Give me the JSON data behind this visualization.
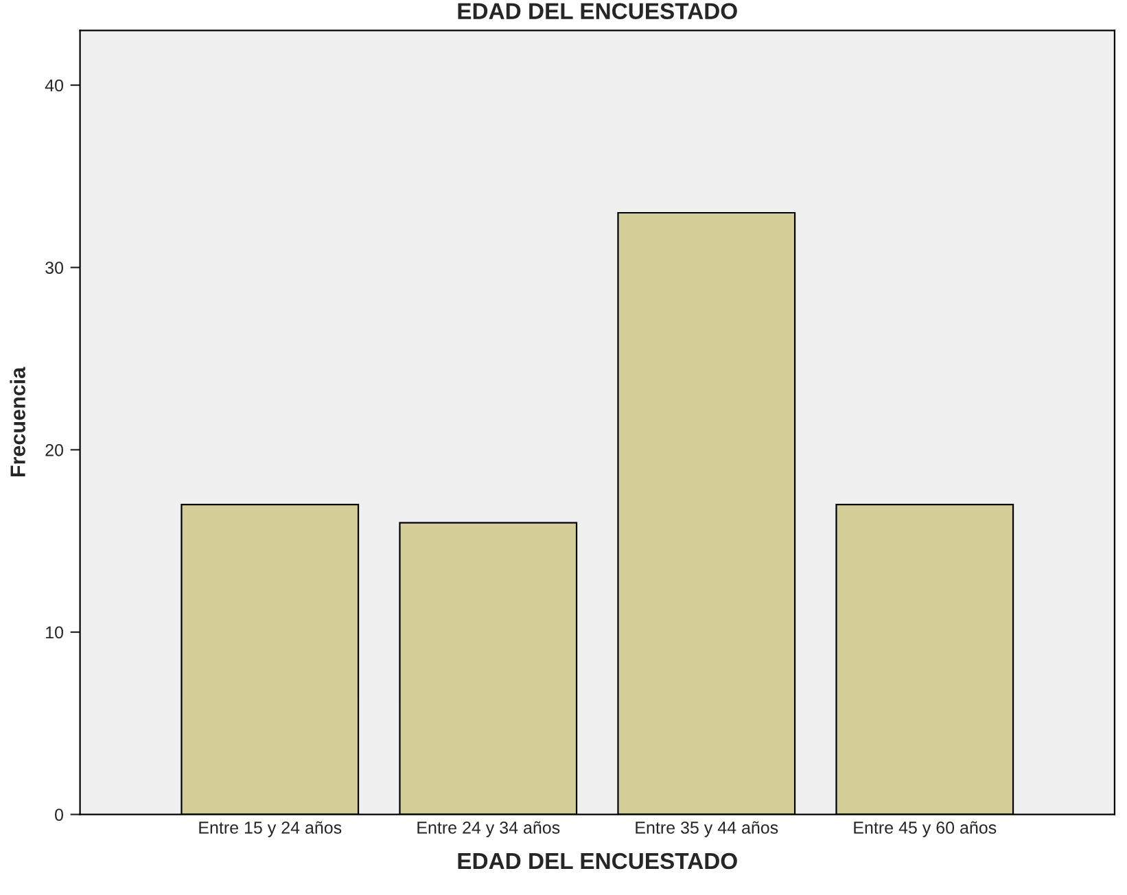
{
  "chart_data": {
    "type": "bar",
    "title": "EDAD DEL ENCUESTADO",
    "xlabel": "EDAD DEL ENCUESTADO",
    "ylabel": "Frecuencia",
    "categories": [
      "Entre 15 y 24 años",
      "Entre 24 y 34 años",
      "Entre 35 y 44 años",
      "Entre 45 y 60 años"
    ],
    "values": [
      17,
      16,
      33,
      17
    ],
    "color": "#d3ce97",
    "ylim": [
      0,
      43
    ],
    "yticks": [
      0,
      10,
      20,
      30,
      40
    ],
    "grid": false
  }
}
